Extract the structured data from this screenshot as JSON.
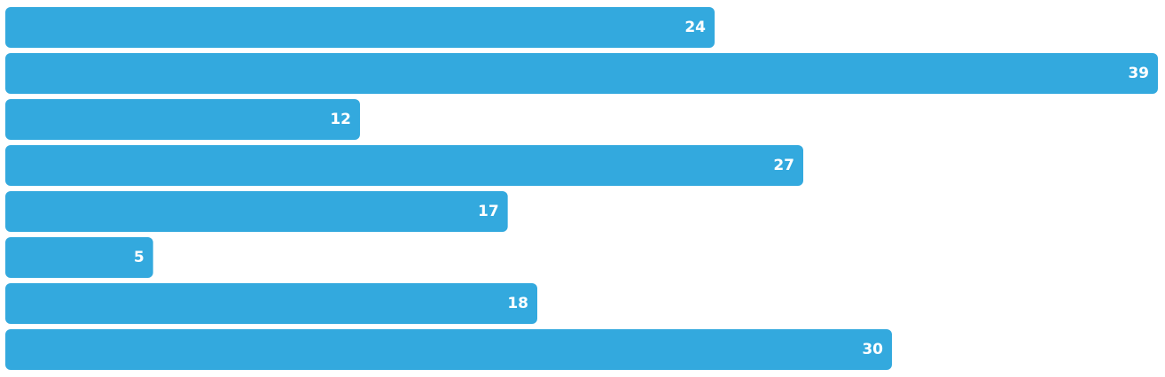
{
  "chart_data": {
    "type": "bar",
    "orientation": "horizontal",
    "values": [
      24,
      39,
      12,
      27,
      17,
      5,
      18,
      30
    ],
    "data_labels": [
      "24",
      "39",
      "12",
      "27",
      "17",
      "5",
      "18",
      "30"
    ],
    "xlim": [
      0,
      39
    ],
    "grid": false,
    "legend": "none",
    "colors": {
      "bar": "#33a9de",
      "label": "#ffffff"
    }
  }
}
